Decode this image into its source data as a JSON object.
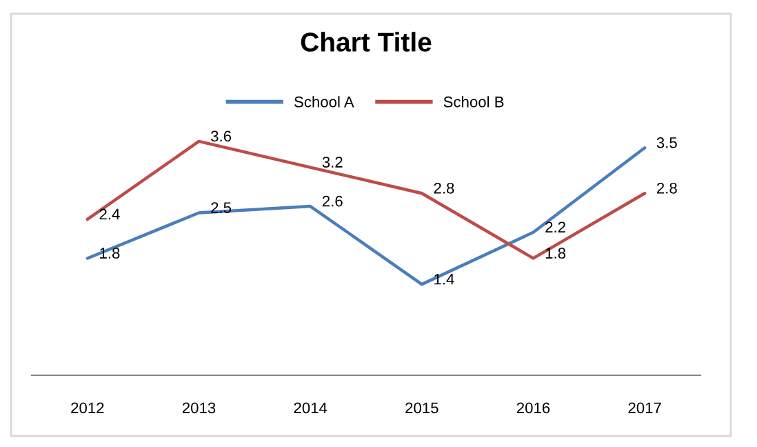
{
  "chart_data": {
    "type": "line",
    "title": "Chart Title",
    "categories": [
      "2012",
      "2013",
      "2014",
      "2015",
      "2016",
      "2017"
    ],
    "series": [
      {
        "name": "School A",
        "color": "#4a7ebb",
        "values": [
          1.8,
          2.5,
          2.6,
          1.4,
          2.2,
          3.5
        ]
      },
      {
        "name": "School B",
        "color": "#be4b48",
        "values": [
          2.4,
          3.6,
          3.2,
          2.8,
          1.8,
          2.8
        ]
      }
    ],
    "tick_labels": "x",
    "data_labels": true,
    "legend": "top",
    "grid": false,
    "marker": "none",
    "line_style": "solid"
  }
}
